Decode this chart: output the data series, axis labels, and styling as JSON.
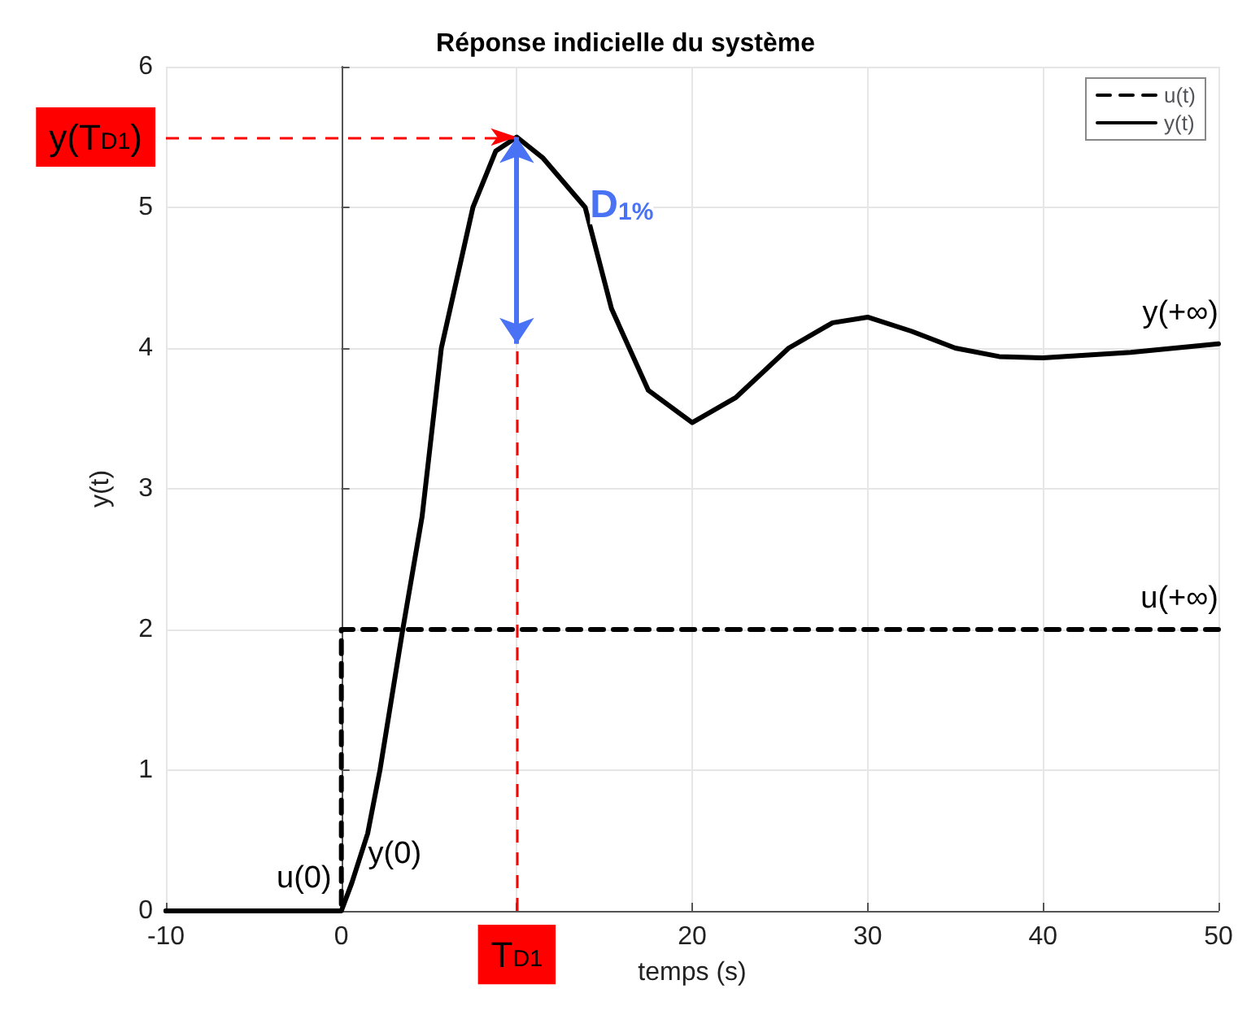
{
  "chart_data": {
    "type": "line",
    "title": "Réponse indicielle du système",
    "xlabel": "temps (s)",
    "ylabel": "y(t)",
    "xlim": [
      -10,
      50
    ],
    "xticks": [
      -10,
      0,
      {
        "value": 10,
        "label": null
      },
      20,
      30,
      40,
      50
    ],
    "ylim": [
      0,
      6
    ],
    "yticks": [
      0,
      1,
      2,
      3,
      4,
      5,
      6
    ],
    "grid": true,
    "legend": "top right",
    "marker": "none",
    "series": [
      {
        "name": "u(t)",
        "color": "#000000",
        "line_style": "dashed",
        "x": [
          -10,
          0,
          0,
          50
        ],
        "values": [
          0,
          0,
          2,
          2
        ]
      },
      {
        "name": "y(t)",
        "color": "#000000",
        "line_style": "solid",
        "x": [
          -10,
          -5,
          0,
          0.6,
          1.5,
          2.2,
          3.5,
          4.6,
          5.7,
          7.5,
          8.8,
          10,
          11.5,
          13.9,
          15.4,
          17.5,
          20,
          22.5,
          25.5,
          28,
          30,
          32.5,
          35,
          37.5,
          40,
          45,
          50
        ],
        "values": [
          0,
          0,
          0,
          0.2,
          0.55,
          1.0,
          2.0,
          2.8,
          4.0,
          5.0,
          5.4,
          5.5,
          5.35,
          5.0,
          4.28,
          3.7,
          3.47,
          3.65,
          4.0,
          4.18,
          4.22,
          4.12,
          4.0,
          3.94,
          3.93,
          3.97,
          4.03
        ]
      }
    ],
    "ref_lines": [
      {
        "axis": "y",
        "value": 5.5,
        "label": "y(T$_{D1}$)",
        "color": "#ff0000",
        "line_style": "dashed"
      },
      {
        "axis": "x",
        "value": 10,
        "label": "T$_{D1}$",
        "color": "#ff0000",
        "line_style": "dashed"
      }
    ],
    "annotations": [
      {
        "text": "D$_{1%}$",
        "x": 10,
        "y": 5.5
      },
      {
        "text": "u(0)",
        "x": 0,
        "y": 0
      },
      {
        "text": "y(0)",
        "x": 0.6,
        "y": 0.2
      },
      {
        "text": "y(+∞)",
        "x": 50,
        "y": 4.03
      },
      {
        "text": "u(+∞)",
        "x": 50,
        "y": 2
      }
    ]
  }
}
